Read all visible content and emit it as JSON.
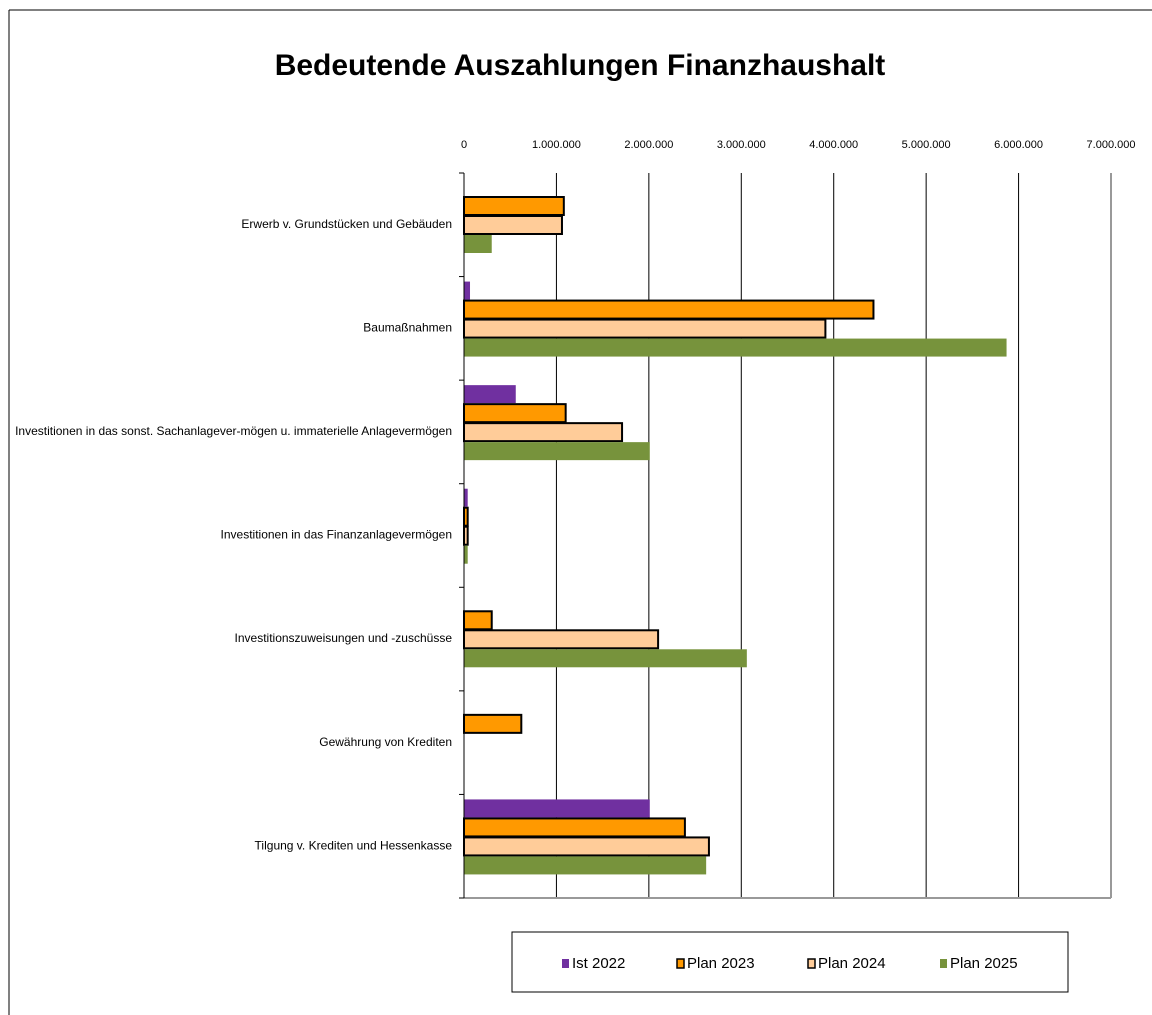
{
  "chart_data": {
    "type": "barh",
    "title": "Bedeutende Auszahlungen Finanzhaushalt",
    "categories": [
      "Erwerb v. Grundstücken und Gebäuden",
      "Baumaßnahmen",
      "Investitionen in das sonst. Sachanlagever-mögen u. immaterielle Anlagevermögen",
      "Investitionen in das Finanzanlagevermögen",
      "Investitionszuweisungen und -zuschüsse",
      "Gewährung von Krediten",
      "Tilgung v. Krediten und Hessenkasse"
    ],
    "series": [
      {
        "name": "Ist 2022",
        "color": "#7030a0",
        "values": [
          null,
          65000,
          560000,
          40000,
          null,
          null,
          2010000
        ]
      },
      {
        "name": "Plan 2023",
        "color": "#ff9900",
        "edgecolor": "#000000",
        "values": [
          1080000,
          4430000,
          1100000,
          40000,
          300000,
          620000,
          2390000
        ]
      },
      {
        "name": "Plan 2024",
        "color": "#ffcc99",
        "edgecolor": "#000000",
        "values": [
          1060000,
          3910000,
          1710000,
          40000,
          2100000,
          null,
          2650000
        ]
      },
      {
        "name": "Plan 2025",
        "color": "#77933c",
        "values": [
          300000,
          5870000,
          2010000,
          40000,
          3060000,
          null,
          2620000
        ]
      }
    ],
    "xlim": [
      0,
      7000000
    ],
    "xticks": [
      0,
      {
        "value": 1000000,
        "label": "1.000.000"
      },
      {
        "value": 2000000,
        "label": "2.000.000"
      },
      {
        "value": 3000000,
        "label": "3.000.000"
      },
      {
        "value": 4000000,
        "label": "4.000.000"
      },
      {
        "value": 5000000,
        "label": "5.000.000"
      },
      {
        "value": 6000000,
        "label": "6.000.000"
      },
      {
        "value": 7000000,
        "label": "7.000.000"
      }
    ],
    "grid": true,
    "legend": "bottom"
  }
}
